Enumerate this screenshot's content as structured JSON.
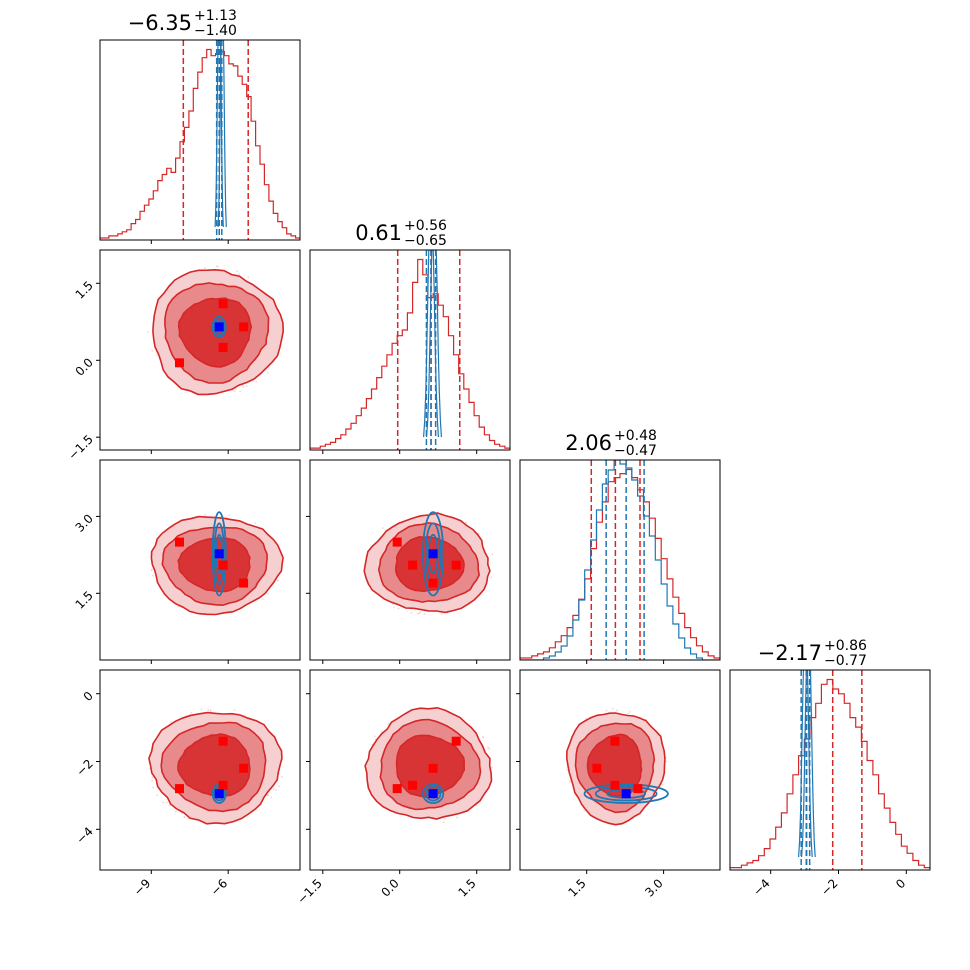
{
  "chart_data": {
    "type": "corner",
    "parameters": [
      {
        "title_value": "−6.35",
        "title_plus": "+1.13",
        "title_minus": "−1.40",
        "xlim": [
          -11.0,
          -3.2
        ],
        "ticks": [
          -9,
          -6
        ],
        "tick_labels": [
          "−9",
          "−6"
        ],
        "red_quantiles": [
          -7.75,
          -6.35,
          -5.22
        ],
        "blue_quantiles": [
          -6.45,
          -6.35,
          -6.25
        ],
        "red_hist": [
          1,
          1,
          2,
          2,
          3,
          4,
          5,
          8,
          10,
          14,
          17,
          20,
          24,
          29,
          32,
          35,
          33,
          40,
          48,
          55,
          63,
          74,
          82,
          89,
          93,
          90,
          91,
          92,
          90,
          86,
          85,
          80,
          76,
          70,
          58,
          46,
          37,
          27,
          19,
          13,
          9,
          6,
          3,
          2,
          1
        ]
      },
      {
        "title_value": "0.61",
        "title_plus": "+0.56",
        "title_minus": "−0.65",
        "xlim": [
          -1.75,
          2.15
        ],
        "ticks": [
          -1.5,
          0.0,
          1.5
        ],
        "tick_labels": [
          "−1.5",
          "0.0",
          "1.5"
        ],
        "red_quantiles": [
          -0.04,
          0.61,
          1.17
        ],
        "blue_quantiles": [
          0.52,
          0.61,
          0.7
        ],
        "red_hist": [
          1,
          1,
          2,
          3,
          4,
          6,
          8,
          11,
          14,
          18,
          22,
          27,
          32,
          38,
          44,
          50,
          56,
          60,
          63,
          72,
          88,
          100,
          92,
          80,
          82,
          76,
          70,
          60,
          50,
          40,
          32,
          25,
          18,
          12,
          8,
          5,
          3,
          2,
          1
        ]
      },
      {
        "title_value": "2.06",
        "title_plus": "+0.48",
        "title_minus": "−0.47",
        "xlim": [
          0.2,
          4.1
        ],
        "ticks": [
          1.5,
          3.0
        ],
        "tick_labels": [
          "1.5",
          "3.0"
        ],
        "red_quantiles": [
          1.59,
          2.06,
          2.54
        ],
        "blue_quantiles": [
          1.88,
          2.27,
          2.62
        ],
        "red_hist": [
          1,
          1,
          2,
          3,
          4,
          6,
          9,
          12,
          16,
          22,
          30,
          40,
          55,
          68,
          78,
          88,
          90,
          92,
          94,
          90,
          84,
          78,
          70,
          60,
          50,
          40,
          31,
          23,
          16,
          11,
          7,
          4,
          2,
          1
        ],
        "blue_hist": [
          0,
          0,
          0,
          0,
          1,
          2,
          4,
          7,
          12,
          20,
          30,
          45,
          60,
          75,
          88,
          95,
          100,
          98,
          96,
          90,
          82,
          72,
          62,
          50,
          38,
          27,
          18,
          11,
          6,
          3,
          1,
          0,
          0,
          0
        ]
      },
      {
        "title_value": "−2.17",
        "title_plus": "+0.86",
        "title_minus": "−0.77",
        "xlim": [
          -5.2,
          0.7
        ],
        "ticks": [
          -4,
          -2,
          0
        ],
        "tick_labels": [
          "−4",
          "−2",
          "0"
        ],
        "red_quantiles": [
          -2.94,
          -2.17,
          -1.31
        ],
        "blue_quantiles": [
          -3.1,
          -2.95,
          -2.85
        ],
        "red_hist": [
          1,
          1,
          2,
          3,
          4,
          6,
          9,
          13,
          18,
          24,
          32,
          40,
          48,
          55,
          64,
          70,
          78,
          80,
          76,
          74,
          70,
          64,
          60,
          54,
          46,
          40,
          32,
          26,
          20,
          15,
          10,
          7,
          4,
          2,
          1
        ]
      }
    ],
    "red_points": [
      [
        -7.9,
        -0.05,
        2.5,
        -2.8
      ],
      [
        -6.2,
        0.25,
        2.05,
        -2.7
      ],
      [
        -6.2,
        1.1,
        2.05,
        -1.4
      ],
      [
        -5.4,
        0.65,
        1.7,
        -2.2
      ]
    ],
    "blue_point": [
      -6.35,
      0.65,
      2.27,
      -2.95
    ],
    "colors": {
      "red": "#d62728",
      "blue": "#1f77b4",
      "marker_blue": "#0000ff",
      "marker_red": "#ff0000"
    }
  }
}
